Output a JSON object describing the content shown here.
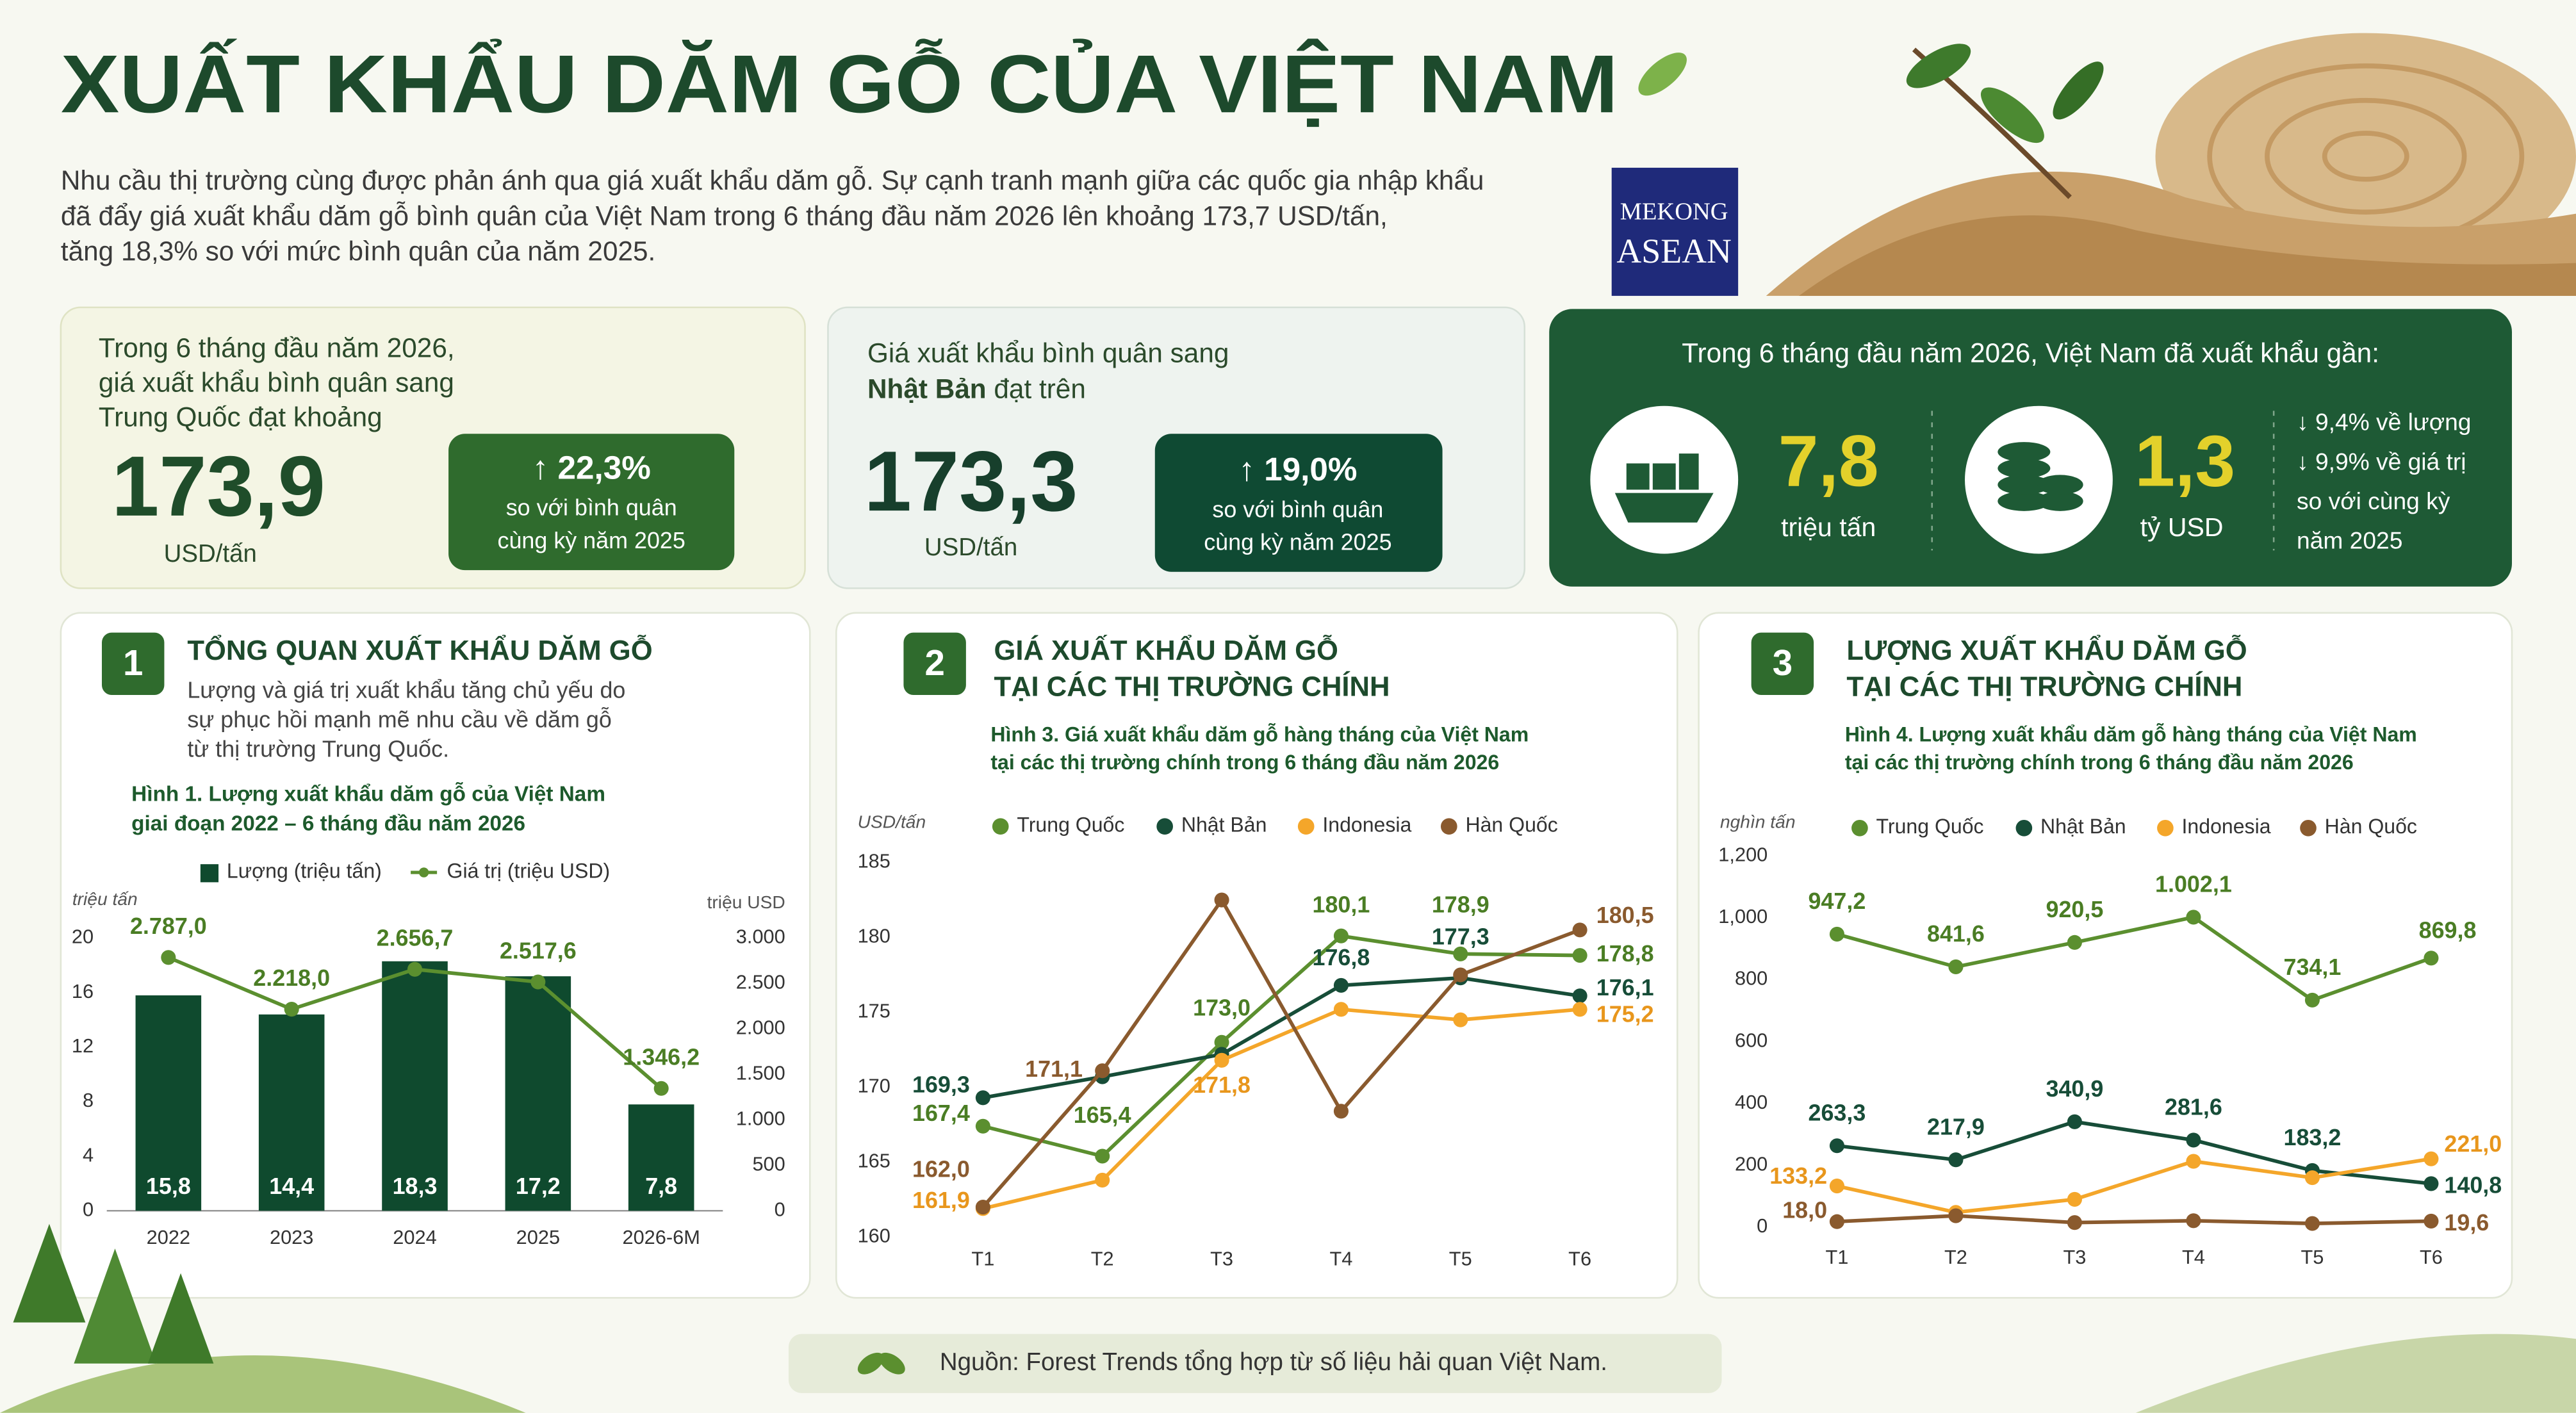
{
  "header": {
    "title": "XUẤT KHẨU DĂM GỖ CỦA VIỆT NAM",
    "intro": [
      "Nhu cầu thị trường cùng được phản ánh qua giá xuất khẩu dăm gỗ. Sự cạnh tranh mạnh giữa các quốc gia nhập khẩu",
      "đã đẩy giá xuất khẩu dăm gỗ bình quân của Việt Nam trong 6 tháng đầu năm 2026 lên khoảng 173,7 USD/tấn,",
      "tăng 18,3% so với mức bình quân của năm 2025."
    ],
    "logo": [
      "MEKONG",
      "ASEAN"
    ]
  },
  "cards": [
    {
      "text": [
        "Trong 6 tháng đầu năm 2026,",
        "giá xuất khẩu bình quân sang",
        "Trung Quốc đạt khoảng"
      ],
      "value": "173,9",
      "unit": "USD/tấn",
      "change": "↑ 22,3%",
      "note": [
        "so với bình quân",
        "cùng kỳ năm 2025"
      ]
    },
    {
      "text": [
        "Giá xuất khẩu bình quân sang"
      ],
      "bold": "Nhật Bản",
      "rest": " đạt trên",
      "value": "173,3",
      "unit": "USD/tấn",
      "change": "↑ 19,0%",
      "note": [
        "so với bình quân",
        "cùng kỳ năm 2025"
      ]
    }
  ],
  "summary": {
    "title": "Trong 6 tháng đầu năm 2026, Việt Nam đã xuất khẩu gần:",
    "volume": "7,8",
    "volume_unit": "triệu tấn",
    "value": "1,3",
    "value_unit": "tỷ USD",
    "notes": [
      "↓ 9,4% về lượng",
      "↓ 9,9% về giá trị",
      "so với cùng kỳ",
      "năm 2025"
    ]
  },
  "sections": [
    {
      "number": "1",
      "title": [
        "TỔNG QUAN XUẤT KHẨU DĂM GỖ"
      ],
      "text": [
        "Lượng và giá trị xuất khẩu tăng chủ yếu do",
        "sự phục hồi mạnh mẽ nhu cầu về dăm gỗ",
        "từ thị trường Trung Quốc."
      ]
    },
    {
      "number": "2",
      "title": [
        "GIÁ XUẤT KHẨU DĂM GỖ",
        "TẠI CÁC THỊ TRƯỜNG CHÍNH"
      ]
    },
    {
      "number": "3",
      "title": [
        "LƯỢNG XUẤT KHẨU DĂM GỖ",
        "TẠI CÁC THỊ TRƯỜNG CHÍNH"
      ]
    }
  ],
  "source": "Nguồn: Forest Trends tổng hợp từ số liệu hải quan Việt Nam.",
  "chart_data": [
    {
      "type": "combo",
      "title": [
        "Hình 1. Lượng xuất khẩu dăm gỗ của Việt Nam",
        "giai đoạn 2022 – 6 tháng đầu năm 2026"
      ],
      "y_label": "triệu tấn",
      "y2_label": "triệu USD",
      "categories": [
        "2022",
        "2023",
        "2024",
        "2025",
        "2026-6M"
      ],
      "series": [
        {
          "name": "Lượng (triệu tấn)",
          "color": "#0f4a2e",
          "kind": "bar",
          "axis": "y",
          "values": [
            15.8,
            14.4,
            18.3,
            17.2,
            7.8
          ],
          "value_labels": [
            "15,8",
            "14,4",
            "18,3",
            "17,2",
            "7,8"
          ]
        },
        {
          "name": "Giá trị (triệu USD)",
          "color": "#5b8f2f",
          "kind": "line",
          "axis": "y2",
          "values": [
            2787.0,
            2218.0,
            2656.7,
            2517.6,
            1346.2
          ],
          "value_labels": [
            "2.787,0",
            "2.218,0",
            "2.656,7",
            "2.517,6",
            "1.346,2"
          ]
        }
      ],
      "ylim": [
        0,
        20
      ],
      "yticks": [
        0,
        4,
        8,
        12,
        16,
        20
      ],
      "y2lim": [
        0,
        3000
      ],
      "y2ticks": [
        0,
        500,
        {
          "value": 1000,
          "label": "1.000"
        },
        {
          "value": 1500,
          "label": "1.500"
        },
        {
          "value": 2000,
          "label": "2.000"
        },
        {
          "value": 2500,
          "label": "2.500"
        },
        {
          "value": 3000,
          "label": "3.000"
        }
      ]
    },
    {
      "type": "line",
      "title": [
        "Hình 3. Giá xuất khẩu dăm gỗ hàng tháng của Việt Nam",
        "tại các thị trường chính trong 6 tháng đầu năm 2026"
      ],
      "y_label": "USD/tấn",
      "categories": [
        "T1",
        "T2",
        "T3",
        "T4",
        "T5",
        "T6"
      ],
      "series": [
        {
          "name": "Trung Quốc",
          "color": "#5b8f2f",
          "values": [
            167.4,
            165.4,
            173.0,
            180.1,
            178.9,
            178.8
          ],
          "value_labels": [
            "167,4",
            "165,4",
            "173,0",
            "180,1",
            "178,9",
            "178,8"
          ]
        },
        {
          "name": "Nhật Bản",
          "color": "#174d38",
          "values": [
            169.3,
            170.7,
            172.2,
            176.8,
            177.3,
            176.1
          ],
          "value_labels": [
            "169,3",
            null,
            null,
            "176,8",
            "177,3",
            "176,1"
          ]
        },
        {
          "name": "Indonesia",
          "color": "#f4a62a",
          "values": [
            161.9,
            163.8,
            171.8,
            175.2,
            174.5,
            175.2
          ],
          "value_labels": [
            "161,9",
            null,
            "171,8",
            null,
            null,
            "175,2"
          ]
        },
        {
          "name": "Hàn Quốc",
          "color": "#8a5a2e",
          "values": [
            162.0,
            171.1,
            182.5,
            168.4,
            177.5,
            180.5
          ],
          "value_labels": [
            "162,0",
            "171,1",
            null,
            null,
            null,
            "180,5"
          ]
        }
      ],
      "ylim": [
        160,
        185
      ],
      "yticks": [
        160,
        165,
        170,
        175,
        180,
        185
      ]
    },
    {
      "type": "line",
      "title": [
        "Hình 4. Lượng xuất khẩu dăm gỗ hàng tháng của Việt Nam",
        "tại các thị trường chính trong 6 tháng đầu năm 2026"
      ],
      "y_label": "nghìn tấn",
      "categories": [
        "T1",
        "T2",
        "T3",
        "T4",
        "T5",
        "T6"
      ],
      "series": [
        {
          "name": "Trung Quốc",
          "color": "#5b8f2f",
          "values": [
            947.2,
            841.6,
            920.5,
            1002.1,
            734.1,
            869.8
          ],
          "value_labels": [
            "947,2",
            "841,6",
            "920,5",
            "1.002,1",
            "734,1",
            "869,8"
          ]
        },
        {
          "name": "Nhật Bản",
          "color": "#174d38",
          "values": [
            263.3,
            217.9,
            340.9,
            281.6,
            183.2,
            140.8
          ],
          "value_labels": [
            "263,3",
            "217,9",
            "340,9",
            "281,6",
            "183,2",
            "140,8"
          ]
        },
        {
          "name": "Indonesia",
          "color": "#f4a62a",
          "values": [
            133.2,
            48,
            90,
            213,
            160,
            221.0
          ],
          "value_labels": [
            "133,2",
            null,
            null,
            null,
            null,
            "221,0"
          ]
        },
        {
          "name": "Hàn Quốc",
          "color": "#8a5a2e",
          "values": [
            18.0,
            37,
            15,
            21,
            12,
            19.6
          ],
          "value_labels": [
            "18,0",
            null,
            null,
            null,
            null,
            "19,6"
          ]
        }
      ],
      "ylim": [
        0,
        1200
      ],
      "yticks": [
        0,
        200,
        400,
        600,
        800,
        {
          "value": 1000,
          "label": "1,000"
        },
        {
          "value": 1200,
          "label": "1,200"
        }
      ]
    }
  ]
}
